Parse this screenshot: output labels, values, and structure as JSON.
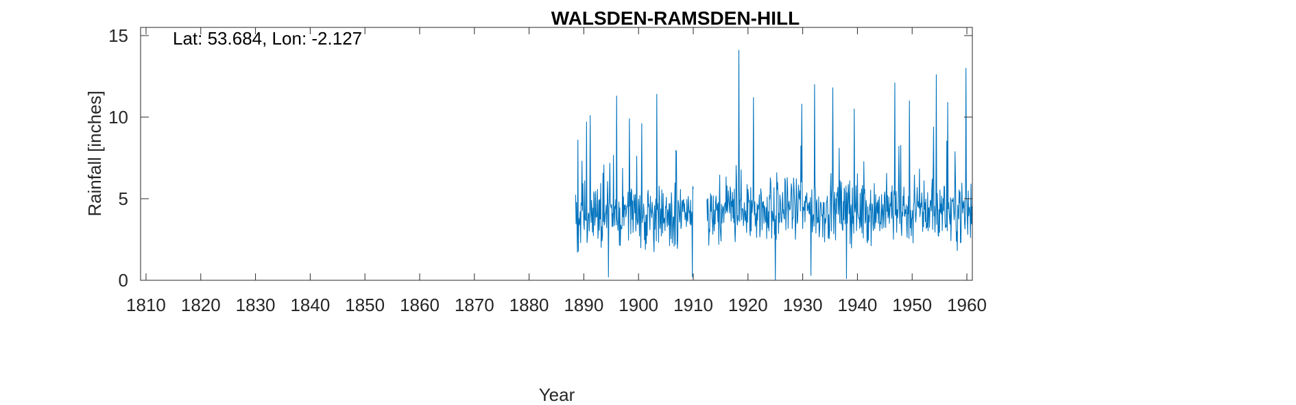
{
  "chart_data": {
    "type": "line",
    "title": "WALSDEN-RAMSDEN-HILL",
    "annotation": "Lat: 53.684, Lon: -2.127",
    "xlabel": "Year",
    "ylabel": "Rainfall [inches]",
    "xlim": [
      1809,
      1961
    ],
    "ylim": [
      0,
      15.5
    ],
    "xticks": [
      1810,
      1820,
      1830,
      1840,
      1850,
      1860,
      1870,
      1880,
      1890,
      1900,
      1910,
      1920,
      1930,
      1940,
      1950,
      1960
    ],
    "yticks": [
      0,
      5,
      10,
      15
    ],
    "grid": false,
    "series_color": "#0072BD",
    "series": [
      {
        "segments": [
          {
            "start_year": 1888.5,
            "end_year": 1910.0,
            "mean": 3.9,
            "max": 11.4,
            "min": 0.1,
            "peaks": [
              [
                1888.9,
                8.6
              ],
              [
                1890.5,
                9.7
              ],
              [
                1891.2,
                10.1
              ],
              [
                1896.0,
                11.3
              ],
              [
                1898.3,
                9.9
              ],
              [
                1900.6,
                9.6
              ],
              [
                1903.3,
                11.4
              ],
              [
                1906.9,
                7.9
              ]
            ],
            "lows": [
              [
                1894.5,
                0.2
              ],
              [
                1909.8,
                0.2
              ]
            ]
          },
          {
            "start_year": 1912.5,
            "end_year": 1961.0,
            "mean": 4.3,
            "max": 14.1,
            "min": 0.0,
            "peaks": [
              [
                1918.3,
                14.1
              ],
              [
                1921.0,
                11.2
              ],
              [
                1929.8,
                10.8
              ],
              [
                1932.2,
                12.0
              ],
              [
                1935.5,
                11.8
              ],
              [
                1939.4,
                10.5
              ],
              [
                1946.8,
                12.1
              ],
              [
                1949.5,
                11.0
              ],
              [
                1954.4,
                12.6
              ],
              [
                1956.5,
                10.9
              ],
              [
                1959.8,
                13.0
              ]
            ],
            "lows": [
              [
                1925.0,
                0.0
              ],
              [
                1931.5,
                0.3
              ],
              [
                1938.0,
                0.1
              ]
            ]
          }
        ]
      }
    ]
  }
}
